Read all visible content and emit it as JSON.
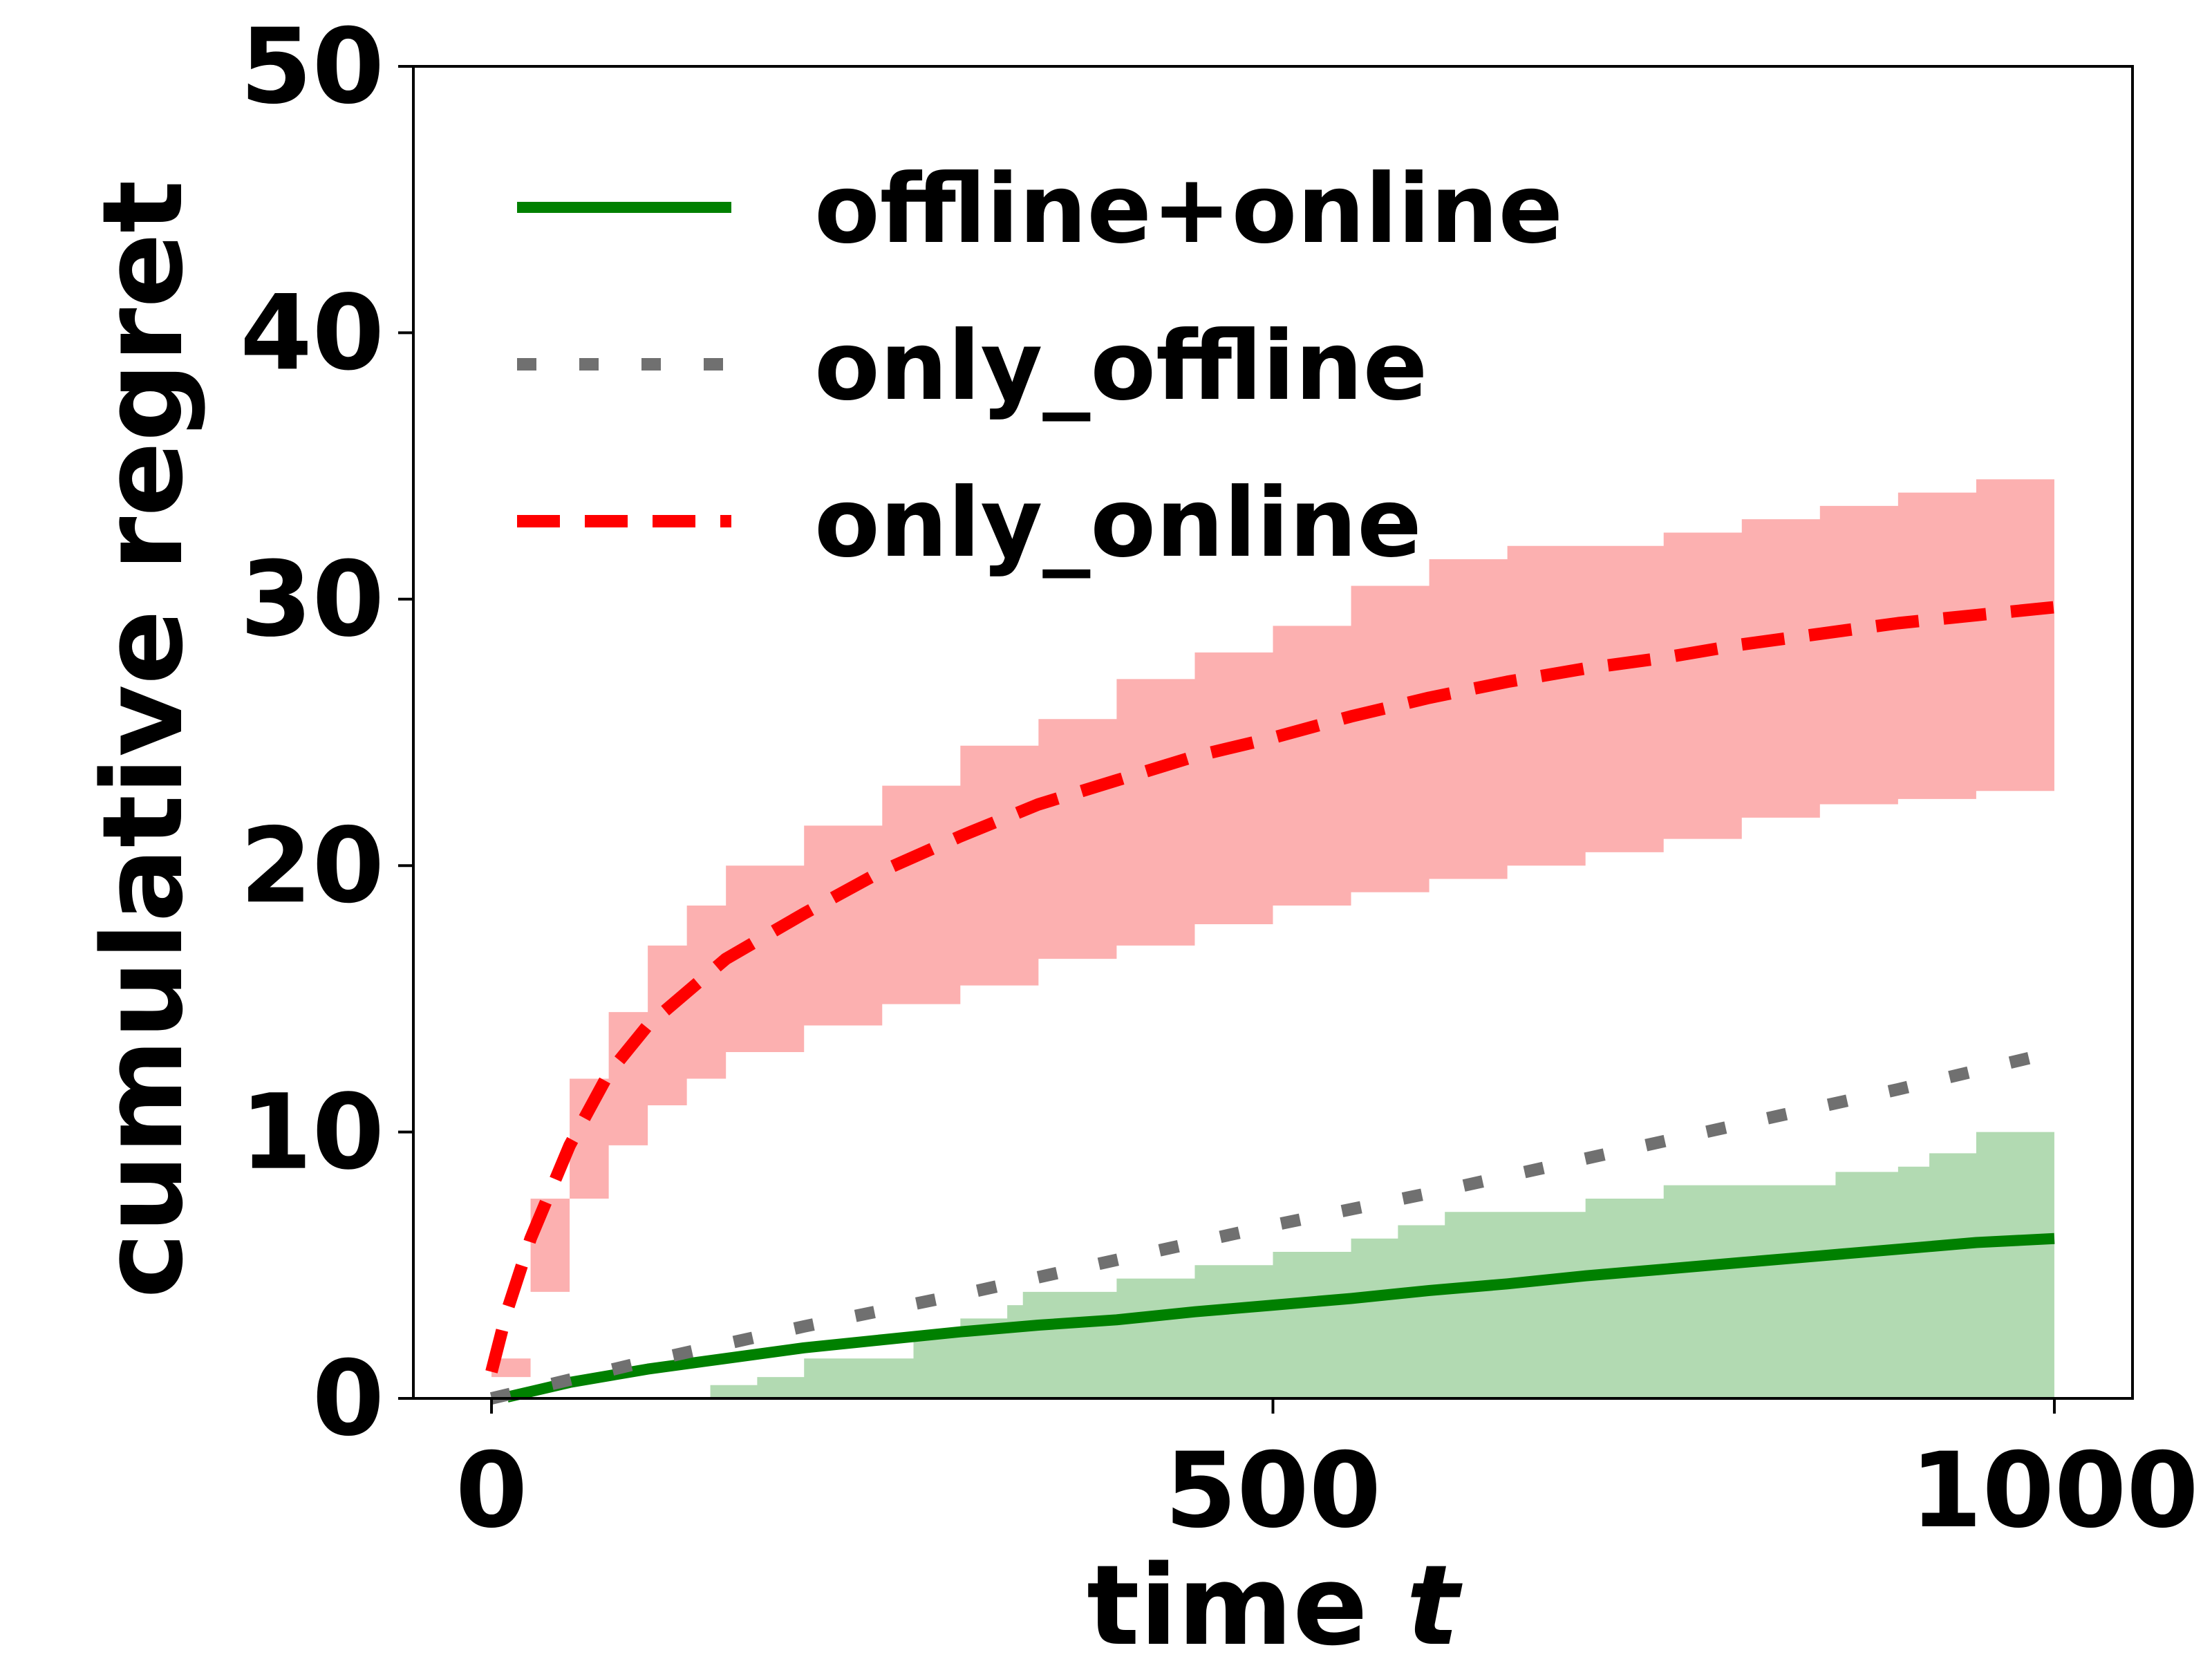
{
  "chart_data": {
    "type": "line",
    "xlabel": "time",
    "xlabel_var": "t",
    "ylabel": "cumulative regret",
    "xlim": [
      -50,
      1050
    ],
    "ylim": [
      0,
      50
    ],
    "x_ticks": [
      0,
      500,
      1000
    ],
    "y_ticks": [
      0,
      10,
      20,
      30,
      40,
      50
    ],
    "grid": false,
    "legend_position": "top-left",
    "series": [
      {
        "name": "offline+online",
        "color": "#008000",
        "style": "solid",
        "x": [
          10,
          50,
          100,
          150,
          200,
          250,
          300,
          350,
          400,
          450,
          500,
          550,
          600,
          650,
          700,
          750,
          800,
          850,
          900,
          950,
          1000
        ],
        "y": [
          0.05,
          0.6,
          1.1,
          1.5,
          1.9,
          2.2,
          2.5,
          2.75,
          2.95,
          3.25,
          3.5,
          3.75,
          4.05,
          4.3,
          4.6,
          4.85,
          5.1,
          5.35,
          5.6,
          5.85,
          6.0
        ],
        "band_x": [
          140,
          170,
          200,
          270,
          300,
          330,
          340,
          400,
          450,
          500,
          550,
          580,
          610,
          680,
          700,
          750,
          800,
          860,
          900,
          920,
          950,
          1000
        ],
        "band_upper": [
          0.5,
          0.8,
          1.5,
          2.5,
          3.0,
          3.5,
          4.0,
          4.5,
          5.0,
          5.5,
          6.0,
          6.5,
          7.0,
          7.0,
          7.5,
          8.0,
          8.0,
          8.5,
          8.7,
          9.2,
          10.0,
          10.0
        ],
        "band_lower": [
          0,
          0,
          0,
          0,
          0,
          0,
          0,
          0,
          0,
          0,
          0,
          0,
          0,
          0,
          0,
          0,
          0,
          0,
          0,
          0,
          0,
          0
        ]
      },
      {
        "name": "only_offline",
        "color": "#707070",
        "style": "dotted",
        "x": [
          0,
          100,
          200,
          300,
          400,
          500,
          600,
          700,
          800,
          900,
          1000
        ],
        "y": [
          0,
          1.4,
          2.7,
          3.9,
          5.2,
          6.5,
          7.7,
          9.0,
          10.3,
          11.6,
          13.0
        ]
      },
      {
        "name": "only_online",
        "color": "#ff0000",
        "style": "dashed",
        "band_color": "#fcb0b0",
        "x": [
          0,
          10,
          25,
          50,
          75,
          100,
          150,
          200,
          250,
          300,
          350,
          400,
          450,
          500,
          550,
          600,
          650,
          700,
          750,
          800,
          850,
          900,
          950,
          1000
        ],
        "y": [
          1.0,
          3.3,
          6.0,
          9.5,
          12.2,
          14.0,
          16.5,
          18.2,
          19.8,
          21.1,
          22.3,
          23.2,
          24.1,
          24.8,
          25.6,
          26.3,
          26.9,
          27.4,
          27.8,
          28.3,
          28.7,
          29.1,
          29.4,
          29.7
        ],
        "band_x": [
          0,
          25,
          50,
          75,
          100,
          125,
          150,
          200,
          250,
          300,
          350,
          400,
          450,
          500,
          550,
          600,
          650,
          700,
          750,
          800,
          850,
          900,
          950,
          1000
        ],
        "band_upper": [
          1.5,
          7.5,
          12.0,
          14.5,
          17.0,
          18.5,
          20.0,
          21.5,
          23.0,
          24.5,
          25.5,
          27.0,
          28.0,
          29.0,
          30.5,
          31.5,
          32.0,
          32.0,
          32.5,
          33.0,
          33.5,
          34.0,
          34.5,
          35.0
        ],
        "band_lower": [
          0.8,
          4.0,
          7.5,
          9.5,
          11.0,
          12.0,
          13.0,
          14.0,
          14.8,
          15.5,
          16.5,
          17.0,
          17.8,
          18.5,
          19.0,
          19.5,
          20.0,
          20.5,
          21.0,
          21.8,
          22.3,
          22.5,
          22.8,
          23.0
        ]
      }
    ]
  }
}
